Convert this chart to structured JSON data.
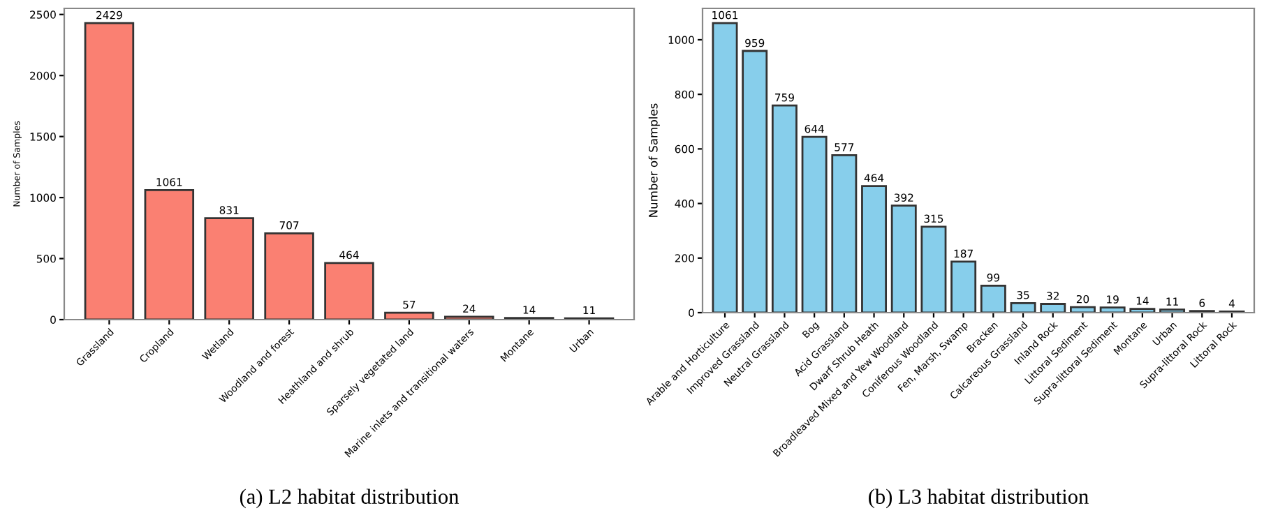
{
  "chart_data": [
    {
      "type": "bar",
      "categories": [
        "Grassland",
        "Cropland",
        "Wetland",
        "Woodland and forest",
        "Heathland and shrub",
        "Sparsely vegetated land",
        "Marine inlets and transitional waters",
        "Montane",
        "Urban"
      ],
      "values": [
        2429,
        1061,
        831,
        707,
        464,
        57,
        24,
        14,
        11
      ],
      "color": "#fa8072",
      "ylabel": "Number of Samples",
      "ylim": [
        0,
        2550
      ],
      "yticks": [
        0,
        500,
        1000,
        1500,
        2000,
        2500
      ],
      "data_labels": true,
      "grid": false,
      "legend": false,
      "annotations": [
        "(a) L2 habitat distribution"
      ]
    },
    {
      "type": "bar",
      "categories": [
        "Arable and Horticulture",
        "Improved Grassland",
        "Neutral Grassland",
        "Bog",
        "Acid Grassland",
        "Dwarf Shrub Heath",
        "Broadleaved Mixed and Yew Woodland",
        "Coniferous Woodland",
        "Fen, Marsh, Swamp",
        "Bracken",
        "Calcareous Grassland",
        "Inland Rock",
        "Littoral Sediment",
        "Supra-littoral Sediment",
        "Montane",
        "Urban",
        "Supra-littoral Rock",
        "Littoral Rock"
      ],
      "values": [
        1061,
        959,
        759,
        644,
        577,
        464,
        392,
        315,
        187,
        99,
        35,
        32,
        20,
        19,
        14,
        11,
        6,
        4
      ],
      "color": "#87ceeb",
      "ylabel": "Number of Samples",
      "ylim": [
        0,
        1115
      ],
      "yticks": [
        0,
        200,
        400,
        600,
        800,
        1000
      ],
      "data_labels": true,
      "grid": false,
      "legend": false,
      "annotations": [
        "(b) L3 habitat distribution"
      ]
    }
  ]
}
